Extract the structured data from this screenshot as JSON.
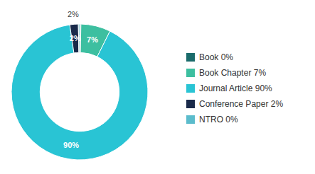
{
  "chart_data": {
    "type": "pie",
    "categories": [
      "Book 0%",
      "Book Chapter 7%",
      "Journal Article 90%",
      "Conference Paper 2%",
      "NTRO 0%"
    ],
    "values": [
      0.3,
      7,
      90,
      2,
      0.3
    ],
    "colors": [
      "#1a6b6b",
      "#3dbfa0",
      "#29c4d4",
      "#1a2a4a",
      "#5bbccc"
    ],
    "data_labels": true,
    "value_labels": [
      null,
      "7%",
      "90%",
      "2%",
      null
    ],
    "annotations": [
      {
        "text": "2%",
        "category": "Conference Paper 2%"
      }
    ],
    "legend": "right"
  }
}
